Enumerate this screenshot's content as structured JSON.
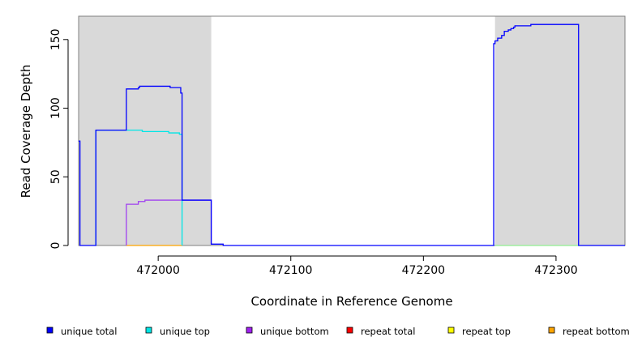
{
  "chart_data": {
    "type": "line",
    "xlabel": "Coordinate in Reference Genome",
    "ylabel": "Read Coverage Depth",
    "xlim": [
      471940,
      472352
    ],
    "ylim": [
      0,
      167
    ],
    "x_ticks": [
      472000,
      472100,
      472200,
      472300
    ],
    "y_ticks": [
      0,
      50,
      100,
      150
    ],
    "shaded_regions": [
      {
        "x0": 471940,
        "x1": 472040
      },
      {
        "x0": 472254,
        "x1": 472352
      }
    ],
    "shade_color": "#d9d9d9",
    "legend_position": "bottom",
    "series": [
      {
        "name": "unique total",
        "color": "#0000ff",
        "points": [
          [
            471940,
            76
          ],
          [
            471941,
            76
          ],
          [
            471941,
            0
          ],
          [
            471953,
            0
          ],
          [
            471953,
            84
          ],
          [
            471976,
            84
          ],
          [
            471976,
            114
          ],
          [
            471985,
            114
          ],
          [
            471985,
            115
          ],
          [
            471986,
            115
          ],
          [
            471986,
            116
          ],
          [
            472009,
            116
          ],
          [
            472009,
            115
          ],
          [
            472017,
            115
          ],
          [
            472017,
            111
          ],
          [
            472018,
            111
          ],
          [
            472018,
            33
          ],
          [
            472040,
            33
          ],
          [
            472040,
            1
          ],
          [
            472049,
            1
          ],
          [
            472049,
            0
          ],
          [
            472253,
            0
          ],
          [
            472253,
            147
          ],
          [
            472254,
            147
          ],
          [
            472254,
            149
          ],
          [
            472256,
            149
          ],
          [
            472256,
            151
          ],
          [
            472259,
            151
          ],
          [
            472259,
            153
          ],
          [
            472261,
            153
          ],
          [
            472261,
            156
          ],
          [
            472264,
            156
          ],
          [
            472264,
            157
          ],
          [
            472266,
            157
          ],
          [
            472266,
            158
          ],
          [
            472268,
            158
          ],
          [
            472268,
            159
          ],
          [
            472269,
            159
          ],
          [
            472269,
            160
          ],
          [
            472281,
            160
          ],
          [
            472281,
            161
          ],
          [
            472317,
            161
          ],
          [
            472317,
            0
          ],
          [
            472352,
            0
          ]
        ]
      },
      {
        "name": "unique top",
        "color": "#00e5e5",
        "points": [
          [
            471953,
            0
          ],
          [
            471953,
            84
          ],
          [
            471988,
            84
          ],
          [
            471988,
            83
          ],
          [
            472008,
            83
          ],
          [
            472008,
            82
          ],
          [
            472016,
            82
          ],
          [
            472016,
            81
          ],
          [
            472018,
            81
          ],
          [
            472018,
            0
          ]
        ]
      },
      {
        "name": "unique bottom",
        "color": "#a040f0",
        "points": [
          [
            471976,
            0
          ],
          [
            471976,
            30
          ],
          [
            471985,
            30
          ],
          [
            471985,
            32
          ],
          [
            471990,
            32
          ],
          [
            471990,
            33
          ],
          [
            472040,
            33
          ],
          [
            472040,
            1
          ]
        ]
      },
      {
        "name": "repeat total",
        "color": "#ff0000",
        "points": []
      },
      {
        "name": "repeat top",
        "color": "#ffff00",
        "points": []
      },
      {
        "name": "repeat bottom",
        "color": "#ffa500",
        "points": [
          [
            471976,
            0
          ],
          [
            472018,
            0
          ]
        ]
      }
    ],
    "legend_swatch_colors": [
      "#0000ff",
      "#00e5e5",
      "#a020f0",
      "#ff0000",
      "#ffff00",
      "#ffa500"
    ],
    "extra_lines": [
      {
        "color": "#90ee90",
        "points": [
          [
            472254,
            0
          ],
          [
            472317,
            0
          ]
        ]
      }
    ]
  }
}
